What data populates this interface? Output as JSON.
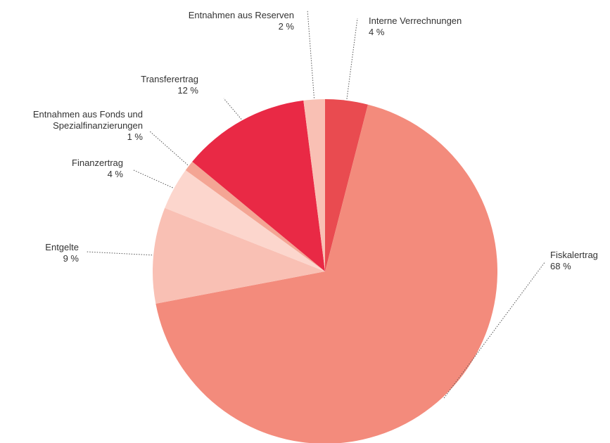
{
  "chart_data": {
    "type": "pie",
    "categories": [
      "Interne Verrechnungen",
      "Fiskalertrag",
      "Entgelte",
      "Finanzertrag",
      "Entnahmen aus Fonds und\nSpezialfinanzierungen",
      "Transferertrag",
      "Entnahmen aus Reserven"
    ],
    "values": [
      4,
      68,
      9,
      4,
      1,
      12,
      2
    ],
    "value_labels": [
      "4 %",
      "68 %",
      "9 %",
      "4 %",
      "1 %",
      "12 %",
      "2 %"
    ],
    "colors": [
      "#e94b50",
      "#f38b7c",
      "#f9c0b4",
      "#fcd6cd",
      "#f4a594",
      "#e92945",
      "#f9c0b4"
    ]
  }
}
